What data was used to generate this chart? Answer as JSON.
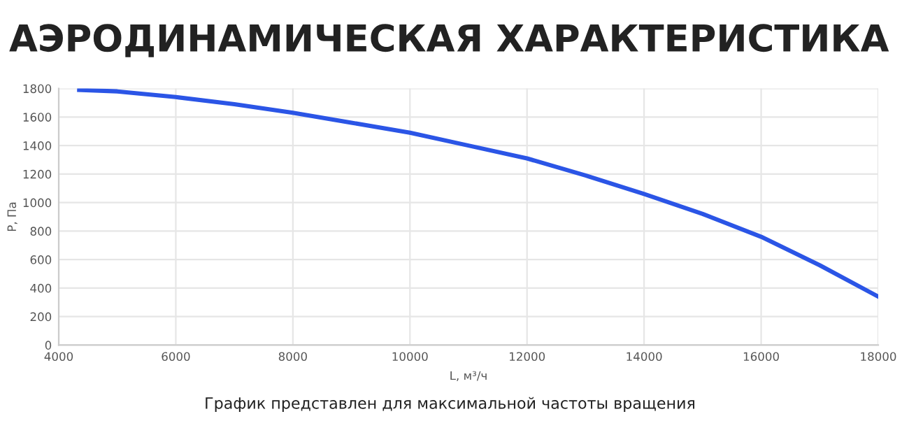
{
  "chart_data": {
    "type": "line",
    "title": "АЭРОДИНАМИЧЕСКАЯ ХАРАКТЕРИСТИКА",
    "xlabel": "L, м³/ч",
    "ylabel": "P, Па",
    "x": [
      4350,
      5000,
      6000,
      7000,
      8000,
      9000,
      10000,
      11000,
      12000,
      13000,
      14000,
      15000,
      16000,
      17000,
      18000
    ],
    "series": [
      {
        "color": "#2b55e6",
        "values": [
          1790,
          1780,
          1740,
          1690,
          1630,
          1560,
          1490,
          1400,
          1310,
          1190,
          1060,
          920,
          760,
          560,
          340
        ]
      }
    ],
    "xlim": [
      4000,
      18000
    ],
    "xticks": [
      4000,
      6000,
      8000,
      10000,
      12000,
      14000,
      16000,
      18000
    ],
    "ylim": [
      0,
      1800
    ],
    "yticks": [
      0,
      200,
      400,
      600,
      800,
      1000,
      1200,
      1400,
      1600,
      1800
    ],
    "grid": true,
    "marker": "none",
    "line_style": "solid",
    "annotations": [
      "График представлен для максимальной частоты вращения"
    ]
  }
}
